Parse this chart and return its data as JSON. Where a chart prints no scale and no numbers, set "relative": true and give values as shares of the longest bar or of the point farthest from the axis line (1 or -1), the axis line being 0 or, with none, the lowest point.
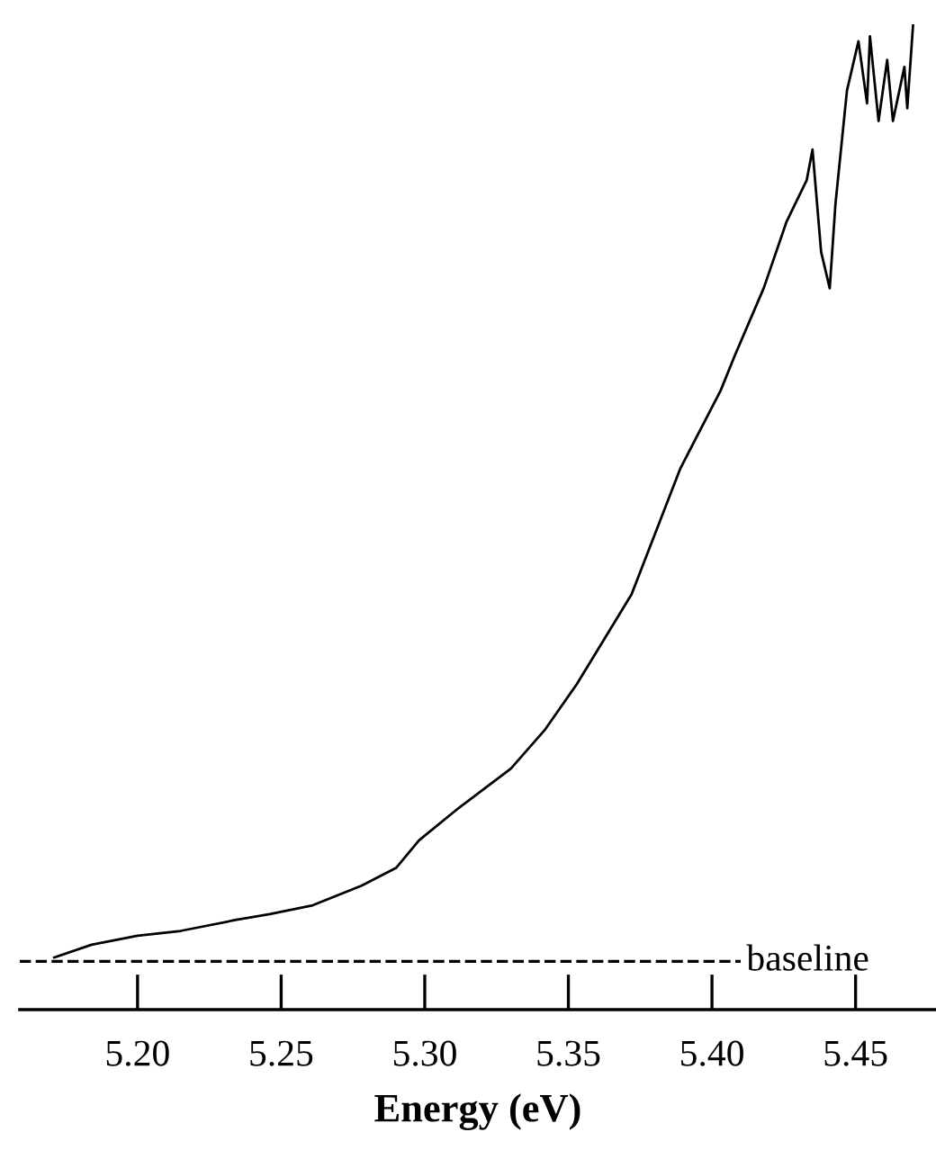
{
  "chart_data": {
    "type": "line",
    "xlabel": "Energy (eV)",
    "relative": true,
    "xlim": [
      5.159,
      5.478
    ],
    "xticks": [
      {
        "value": 5.2,
        "label": "5.20"
      },
      {
        "value": 5.25,
        "label": "5.25"
      },
      {
        "value": 5.3,
        "label": "5.30"
      },
      {
        "value": 5.35,
        "label": "5.35"
      },
      {
        "value": 5.4,
        "label": "5.40"
      },
      {
        "value": 5.45,
        "label": "5.45"
      }
    ],
    "grid": false,
    "series": [
      {
        "color": "#000000",
        "x": [
          5.171,
          5.184,
          5.2,
          5.215,
          5.234,
          5.246,
          5.261,
          5.278,
          5.29,
          5.298,
          5.311,
          5.33,
          5.342,
          5.353,
          5.372,
          5.389,
          5.403,
          5.408,
          5.418,
          5.426,
          5.433,
          5.435,
          5.438,
          5.441,
          5.443,
          5.447,
          5.451,
          5.454,
          5.455,
          5.458,
          5.461,
          5.463,
          5.467,
          5.468,
          5.47
        ],
        "values": [
          0.053,
          0.066,
          0.075,
          0.08,
          0.091,
          0.097,
          0.106,
          0.126,
          0.144,
          0.172,
          0.203,
          0.245,
          0.285,
          0.331,
          0.422,
          0.55,
          0.629,
          0.665,
          0.733,
          0.801,
          0.843,
          0.874,
          0.77,
          0.733,
          0.819,
          0.934,
          0.984,
          0.921,
          0.989,
          0.903,
          0.965,
          0.903,
          0.958,
          0.916,
          1.0
        ]
      }
    ],
    "ref_lines": [
      {
        "axis": "y",
        "value": 0.049,
        "label": "baseline",
        "color": "#000000",
        "line_style": "dashed"
      }
    ]
  }
}
